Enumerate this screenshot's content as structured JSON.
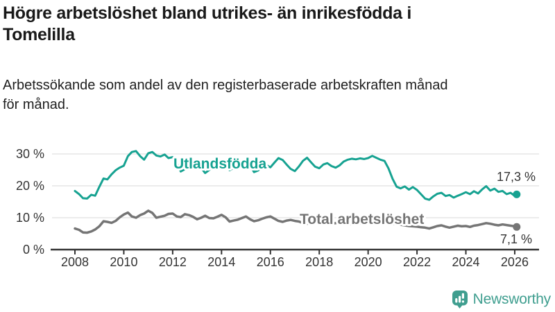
{
  "title": {
    "lines": [
      "Högre arbetslöshet bland utrikes- än inrikesfödda i",
      "Tomelilla"
    ]
  },
  "subtitle": {
    "lines": [
      "Arbetssökande som andel av den registerbaserade arbetskraften månad",
      "för månad."
    ]
  },
  "logo": {
    "name": "Newsworthy",
    "icon": "newsworthy-speech-bubble-bar-chart-icon",
    "color": "#3f9e8f"
  },
  "chart_data": {
    "type": "line",
    "unit": "%",
    "title": "Högre arbetslöshet bland utrikes- än inrikesfödda i Tomelilla",
    "subtitle": "Arbetssökande som andel av den registerbaserade arbetskraften månad för månad.",
    "x_axis": {
      "ticks": [
        2008,
        2010,
        2012,
        2014,
        2016,
        2018,
        2020,
        2022,
        2024,
        2026
      ],
      "range": [
        2007.1,
        2027
      ]
    },
    "y_axis": {
      "ticks": [
        0,
        10,
        20,
        30
      ],
      "tick_labels": [
        "0 %",
        "10 %",
        "20 %",
        "30 %"
      ],
      "range": [
        0,
        33
      ],
      "grid": true
    },
    "style": {
      "grid_color": "#d9d9d9",
      "axis_color": "#333333",
      "background": "#ffffff",
      "label_color": "#333333"
    },
    "x": [
      2008,
      2008.17,
      2008.33,
      2008.5,
      2008.67,
      2008.83,
      2009,
      2009.17,
      2009.33,
      2009.5,
      2009.67,
      2009.83,
      2010,
      2010.17,
      2010.33,
      2010.5,
      2010.67,
      2010.83,
      2011,
      2011.17,
      2011.33,
      2011.5,
      2011.67,
      2011.83,
      2012,
      2012.17,
      2012.33,
      2012.5,
      2012.67,
      2012.83,
      2013,
      2013.17,
      2013.33,
      2013.5,
      2013.67,
      2013.83,
      2014,
      2014.17,
      2014.33,
      2014.5,
      2014.67,
      2014.83,
      2015,
      2015.17,
      2015.33,
      2015.5,
      2015.67,
      2015.83,
      2016,
      2016.17,
      2016.33,
      2016.5,
      2016.67,
      2016.83,
      2017,
      2017.17,
      2017.33,
      2017.5,
      2017.67,
      2017.83,
      2018,
      2018.17,
      2018.33,
      2018.5,
      2018.67,
      2018.83,
      2019,
      2019.17,
      2019.33,
      2019.5,
      2019.67,
      2019.83,
      2020,
      2020.17,
      2020.33,
      2020.5,
      2020.67,
      2020.83,
      2021,
      2021.17,
      2021.33,
      2021.5,
      2021.67,
      2021.83,
      2022,
      2022.17,
      2022.33,
      2022.5,
      2022.67,
      2022.83,
      2023,
      2023.17,
      2023.33,
      2023.5,
      2023.67,
      2023.83,
      2024,
      2024.17,
      2024.33,
      2024.5,
      2024.67,
      2024.83,
      2025,
      2025.17,
      2025.33,
      2025.5,
      2025.67,
      2025.83,
      2026,
      2026.08
    ],
    "series": [
      {
        "name": "Utlandsfödda",
        "color": "#16a291",
        "end_value": 17.3,
        "end_label": "17,3 %",
        "values": [
          18.4,
          17.4,
          16.1,
          16.0,
          17.2,
          16.9,
          19.7,
          22.3,
          22.0,
          23.6,
          24.9,
          25.7,
          26.3,
          29.3,
          30.6,
          30.9,
          29.3,
          28.2,
          30.2,
          30.6,
          29.5,
          29.2,
          29.8,
          28.7,
          29.0,
          27.2,
          24.5,
          25.2,
          26.3,
          25.9,
          27.2,
          25.6,
          24.0,
          25.0,
          26.3,
          26.8,
          27.5,
          26.2,
          24.9,
          25.6,
          26.7,
          27.1,
          27.8,
          26.4,
          24.3,
          24.8,
          26.0,
          26.5,
          25.8,
          27.3,
          28.7,
          28.1,
          26.6,
          25.3,
          24.6,
          26.1,
          27.8,
          28.8,
          27.3,
          26.0,
          25.5,
          26.7,
          27.1,
          26.2,
          25.7,
          26.4,
          27.6,
          28.2,
          28.5,
          28.3,
          28.6,
          28.4,
          28.7,
          29.4,
          28.8,
          28.2,
          27.8,
          25.5,
          22.2,
          19.7,
          19.2,
          19.8,
          18.8,
          19.6,
          18.7,
          17.3,
          16.0,
          15.6,
          16.7,
          17.5,
          17.8,
          16.8,
          17.1,
          16.3,
          16.9,
          17.4,
          18.0,
          17.4,
          18.3,
          17.6,
          18.9,
          19.9,
          18.5,
          19.1,
          18.1,
          18.4,
          17.4,
          17.8,
          16.8,
          17.3
        ]
      },
      {
        "name": "Total arbetslöshet",
        "color": "#757575",
        "end_value": 7.1,
        "end_label": "7,1 %",
        "values": [
          6.6,
          6.2,
          5.4,
          5.3,
          5.7,
          6.3,
          7.3,
          8.9,
          8.7,
          8.4,
          9.0,
          10.1,
          11.0,
          11.6,
          10.4,
          10.0,
          10.8,
          11.3,
          12.2,
          11.5,
          10.0,
          10.3,
          10.6,
          11.2,
          11.3,
          10.4,
          10.2,
          11.1,
          10.8,
          10.3,
          9.5,
          10.0,
          10.6,
          9.9,
          9.8,
          10.3,
          10.9,
          10.1,
          8.8,
          9.1,
          9.4,
          9.9,
          10.4,
          9.5,
          8.9,
          9.2,
          9.7,
          10.1,
          10.4,
          9.7,
          9.0,
          8.7,
          9.1,
          9.3,
          9.0,
          8.8,
          8.3,
          8.1,
          8.4,
          8.6,
          8.8,
          8.4,
          7.9,
          8.1,
          8.3,
          8.5,
          8.6,
          8.2,
          7.9,
          8.0,
          8.2,
          8.4,
          8.5,
          8.8,
          9.0,
          8.8,
          8.6,
          8.4,
          8.2,
          8.0,
          7.8,
          7.6,
          7.4,
          7.3,
          7.2,
          7.0,
          6.9,
          6.6,
          7.0,
          7.4,
          7.6,
          7.2,
          6.9,
          7.2,
          7.5,
          7.3,
          7.4,
          7.1,
          7.5,
          7.7,
          8.0,
          8.3,
          8.1,
          7.8,
          7.6,
          7.9,
          7.7,
          7.5,
          7.3,
          7.1
        ]
      }
    ],
    "legend_position": "inline-labels"
  }
}
